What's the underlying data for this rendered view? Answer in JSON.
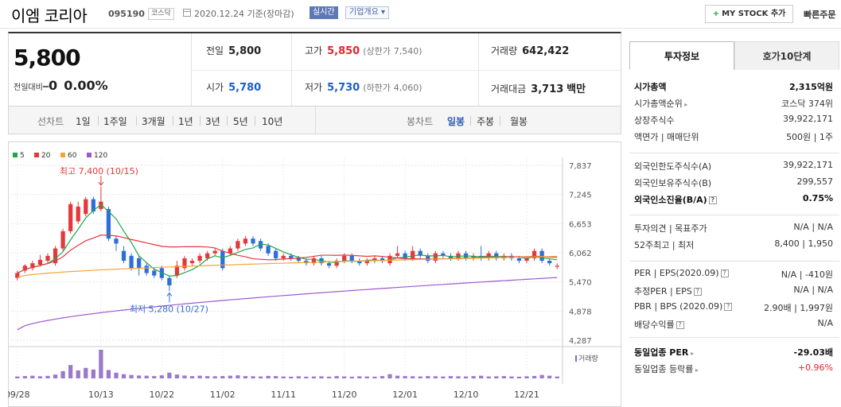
{
  "header": {
    "company": "이엠 코리아",
    "code": "095190",
    "market": "코스닥",
    "date": "2020.12.24 기준(장마감)",
    "realtime": "실시간",
    "overview": "기업개요",
    "mystock": "MY STOCK 추가",
    "quick": "빠른주문"
  },
  "price": {
    "current": "5,800",
    "change_label": "전일대비",
    "change_sym": "━",
    "change_value": "0",
    "change_pct": "0.00%",
    "prev_close_label": "전일",
    "prev_close": "5,800",
    "high_label": "고가",
    "high": "5,850",
    "upper_limit_label": "(상한가",
    "upper_limit": "7,540)",
    "volume_label": "거래량",
    "volume": "642,422",
    "open_label": "시가",
    "open": "5,780",
    "low_label": "저가",
    "low": "5,730",
    "lower_limit_label": "(하한가",
    "lower_limit": "4,060)",
    "amount_label": "거래대금",
    "amount": "3,713",
    "amount_unit": "백만"
  },
  "period_bar": {
    "line_label": "선차트",
    "line_tabs": [
      "1일",
      "1주일",
      "3개월",
      "1년",
      "3년",
      "5년",
      "10년"
    ],
    "candle_label": "봉차트",
    "candle_tabs": [
      "일봉",
      "주봉",
      "월봉"
    ],
    "candle_active": "일봉"
  },
  "chart_data": {
    "type": "candlestick",
    "legend": [
      {
        "name": "5",
        "color": "#1fa64a"
      },
      {
        "name": "20",
        "color": "#e4393c"
      },
      {
        "name": "60",
        "color": "#f5a33a"
      },
      {
        "name": "120",
        "color": "#9b59d0"
      }
    ],
    "y_ticks": [
      "7,837",
      "7,245",
      "6,653",
      "6,062",
      "5,470",
      "4,878",
      "4,287"
    ],
    "ylim": [
      4287,
      7837
    ],
    "x_ticks": [
      "09/28",
      "10/13",
      "10/22",
      "11/02",
      "11/11",
      "11/20",
      "12/01",
      "12/10",
      "12/21"
    ],
    "volume_label": "거래량",
    "annotations": {
      "high": "최고 7,400 (10/15)",
      "low": "최저 5,280 (10/27)"
    },
    "candles": [
      {
        "o": 5550,
        "c": 5650,
        "h": 5700,
        "l": 5500
      },
      {
        "o": 5700,
        "c": 5800,
        "h": 5830,
        "l": 5650
      },
      {
        "o": 5750,
        "c": 5850,
        "h": 5900,
        "l": 5700
      },
      {
        "o": 5820,
        "c": 5920,
        "h": 6020,
        "l": 5780
      },
      {
        "o": 5900,
        "c": 6000,
        "h": 6050,
        "l": 5850
      },
      {
        "o": 5850,
        "c": 6150,
        "h": 6200,
        "l": 5800
      },
      {
        "o": 6150,
        "c": 6500,
        "h": 6550,
        "l": 6100
      },
      {
        "o": 6500,
        "c": 7050,
        "h": 7100,
        "l": 6450
      },
      {
        "o": 6700,
        "c": 7000,
        "h": 7100,
        "l": 6650
      },
      {
        "o": 6850,
        "c": 7150,
        "h": 7200,
        "l": 6800
      },
      {
        "o": 7150,
        "c": 6900,
        "h": 7200,
        "l": 6850
      },
      {
        "o": 6950,
        "c": 7100,
        "h": 7400,
        "l": 6900
      },
      {
        "o": 6950,
        "c": 6350,
        "h": 7000,
        "l": 6300
      },
      {
        "o": 6350,
        "c": 6250,
        "h": 6400,
        "l": 6100
      },
      {
        "o": 6100,
        "c": 5900,
        "h": 6200,
        "l": 5850
      },
      {
        "o": 6000,
        "c": 5750,
        "h": 6050,
        "l": 5700
      },
      {
        "o": 5950,
        "c": 5750,
        "h": 6000,
        "l": 5600
      },
      {
        "o": 5800,
        "c": 5650,
        "h": 5850,
        "l": 5600
      },
      {
        "o": 5700,
        "c": 5600,
        "h": 5750,
        "l": 5550
      },
      {
        "o": 5750,
        "c": 5550,
        "h": 5800,
        "l": 5500
      },
      {
        "o": 5550,
        "c": 5400,
        "h": 5600,
        "l": 5280
      },
      {
        "o": 5600,
        "c": 5800,
        "h": 5900,
        "l": 5550
      },
      {
        "o": 5750,
        "c": 5950,
        "h": 6000,
        "l": 5700
      },
      {
        "o": 5850,
        "c": 5900,
        "h": 5950,
        "l": 5800
      },
      {
        "o": 5900,
        "c": 6000,
        "h": 6050,
        "l": 5850
      },
      {
        "o": 5950,
        "c": 6050,
        "h": 6100,
        "l": 5900
      },
      {
        "o": 6050,
        "c": 6100,
        "h": 6150,
        "l": 6000
      },
      {
        "o": 6100,
        "c": 5750,
        "h": 6150,
        "l": 5700
      },
      {
        "o": 6050,
        "c": 6150,
        "h": 6200,
        "l": 6000
      },
      {
        "o": 6150,
        "c": 6300,
        "h": 6350,
        "l": 6100
      },
      {
        "o": 6250,
        "c": 6350,
        "h": 6400,
        "l": 6200
      },
      {
        "o": 6350,
        "c": 6250,
        "h": 6400,
        "l": 6200
      },
      {
        "o": 6300,
        "c": 6150,
        "h": 6350,
        "l": 6100
      },
      {
        "o": 6200,
        "c": 6050,
        "h": 6250,
        "l": 6000
      },
      {
        "o": 6100,
        "c": 5950,
        "h": 6150,
        "l": 5900
      },
      {
        "o": 5950,
        "c": 6000,
        "h": 6050,
        "l": 5900
      },
      {
        "o": 6000,
        "c": 5950,
        "h": 6050,
        "l": 5900
      },
      {
        "o": 5950,
        "c": 5900,
        "h": 6000,
        "l": 5850
      },
      {
        "o": 5900,
        "c": 5850,
        "h": 5950,
        "l": 5800
      },
      {
        "o": 5850,
        "c": 5950,
        "h": 6000,
        "l": 5800
      },
      {
        "o": 5950,
        "c": 5850,
        "h": 6000,
        "l": 5800
      },
      {
        "o": 5850,
        "c": 5800,
        "h": 5900,
        "l": 5750
      },
      {
        "o": 5800,
        "c": 5900,
        "h": 5950,
        "l": 5750
      },
      {
        "o": 5900,
        "c": 6000,
        "h": 6050,
        "l": 5850
      },
      {
        "o": 6000,
        "c": 5900,
        "h": 6050,
        "l": 5850
      },
      {
        "o": 5900,
        "c": 5850,
        "h": 5950,
        "l": 5800
      },
      {
        "o": 5850,
        "c": 5900,
        "h": 5950,
        "l": 5800
      },
      {
        "o": 5900,
        "c": 5950,
        "h": 6000,
        "l": 5850
      },
      {
        "o": 5950,
        "c": 5900,
        "h": 6000,
        "l": 5850
      },
      {
        "o": 5850,
        "c": 6000,
        "h": 6050,
        "l": 5800
      },
      {
        "o": 6000,
        "c": 6050,
        "h": 6200,
        "l": 5950
      },
      {
        "o": 6050,
        "c": 5950,
        "h": 6100,
        "l": 5900
      },
      {
        "o": 5950,
        "c": 6100,
        "h": 6200,
        "l": 5900
      },
      {
        "o": 6100,
        "c": 6000,
        "h": 6150,
        "l": 5950
      },
      {
        "o": 6000,
        "c": 5900,
        "h": 6050,
        "l": 5850
      },
      {
        "o": 5900,
        "c": 6050,
        "h": 6100,
        "l": 5850
      },
      {
        "o": 6050,
        "c": 6000,
        "h": 6100,
        "l": 5950
      },
      {
        "o": 6000,
        "c": 5950,
        "h": 6050,
        "l": 5900
      },
      {
        "o": 5950,
        "c": 6050,
        "h": 6100,
        "l": 5900
      },
      {
        "o": 6050,
        "c": 5950,
        "h": 6100,
        "l": 5900
      },
      {
        "o": 5950,
        "c": 6000,
        "h": 6050,
        "l": 5900
      },
      {
        "o": 6000,
        "c": 5950,
        "h": 6200,
        "l": 5900
      },
      {
        "o": 5950,
        "c": 6050,
        "h": 6100,
        "l": 5900
      },
      {
        "o": 6050,
        "c": 5950,
        "h": 6100,
        "l": 5900
      },
      {
        "o": 5950,
        "c": 6000,
        "h": 6050,
        "l": 5900
      },
      {
        "o": 6000,
        "c": 5950,
        "h": 6050,
        "l": 5900
      },
      {
        "o": 5950,
        "c": 5900,
        "h": 6000,
        "l": 5850
      },
      {
        "o": 5900,
        "c": 5950,
        "h": 6000,
        "l": 5850
      },
      {
        "o": 5950,
        "c": 6100,
        "h": 6150,
        "l": 5900
      },
      {
        "o": 6100,
        "c": 5900,
        "h": 6150,
        "l": 5850
      },
      {
        "o": 5900,
        "c": 5850,
        "h": 5950,
        "l": 5800
      },
      {
        "o": 5780,
        "c": 5800,
        "h": 5850,
        "l": 5730
      }
    ],
    "volume": [
      10,
      12,
      14,
      11,
      13,
      20,
      38,
      70,
      42,
      55,
      46,
      150,
      44,
      30,
      22,
      18,
      15,
      14,
      12,
      16,
      30,
      20,
      15,
      12,
      14,
      12,
      11,
      12,
      14,
      16,
      12,
      11,
      10,
      13,
      12,
      10,
      9,
      11,
      9,
      10,
      11,
      9,
      12,
      10,
      9,
      11,
      10,
      9,
      12,
      22,
      14,
      12,
      11,
      10,
      12,
      11,
      10,
      12,
      11,
      10,
      12,
      14,
      10,
      11,
      12,
      10,
      9,
      11,
      13,
      18,
      14,
      10
    ]
  },
  "side": {
    "tab_info": "투자정보",
    "tab_quote": "호가10단계",
    "rows1": [
      {
        "l": "시가총액",
        "r": "2,315억원",
        "bold": true
      },
      {
        "l": "시가총액순위",
        "r": "코스닥 374위",
        "caret": true
      },
      {
        "l": "상장주식수",
        "r": "39,922,171"
      },
      {
        "l": "액면가 | 매매단위",
        "r": "500원 | 1주"
      }
    ],
    "rows2": [
      {
        "l": "외국인한도주식수(A)",
        "r": "39,922,171"
      },
      {
        "l": "외국인보유주식수(B)",
        "r": "299,557"
      },
      {
        "l": "외국인소진율(B/A)",
        "r": "0.75%",
        "bold": true,
        "q": true
      }
    ],
    "rows3": [
      {
        "l": "투자의견 | 목표주가",
        "r": "N/A | N/A"
      },
      {
        "l": "52주최고 | 최저",
        "r": "8,400 | 1,950"
      }
    ],
    "rows4": [
      {
        "l": "PER | EPS(2020.09)",
        "r": "N/A | -410원",
        "q": true
      },
      {
        "l": "추정PER | EPS",
        "r": "N/A | N/A",
        "q": true
      },
      {
        "l": "PBR | BPS (2020.09)",
        "r": "2.90배 | 1,997원",
        "q": true
      },
      {
        "l": "배당수익률",
        "r": "N/A",
        "q": true
      }
    ],
    "rows5": [
      {
        "l": "동일업종 PER",
        "r": "-29.03배",
        "bold": true,
        "caret": true
      },
      {
        "l": "동일업종 등락률",
        "r": "+0.96%",
        "red": true,
        "caret": true
      }
    ]
  }
}
